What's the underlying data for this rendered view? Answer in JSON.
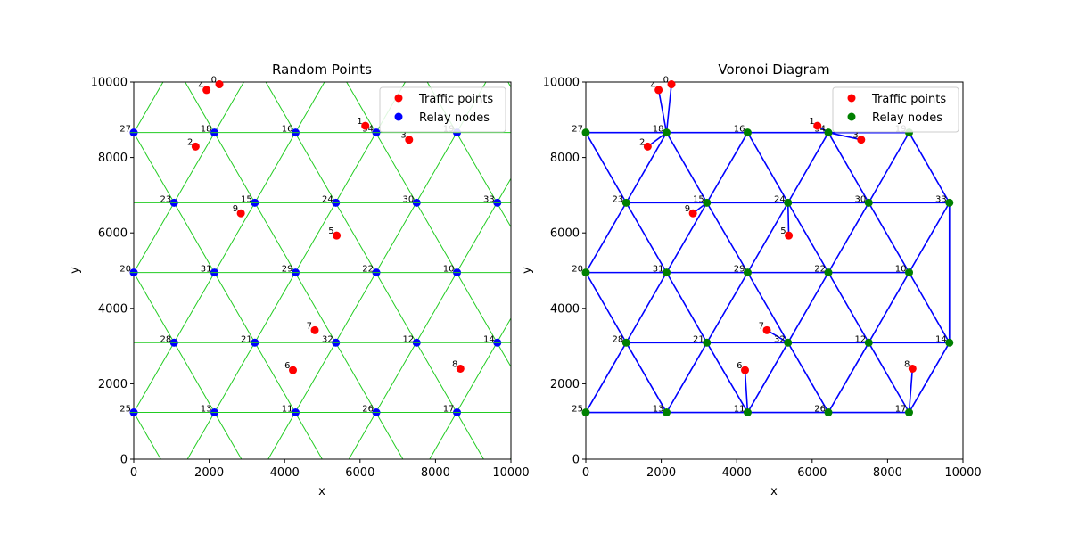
{
  "chart_data": [
    {
      "type": "scatter",
      "title": "Random Points",
      "xlabel": "x",
      "ylabel": "y",
      "xlim": [
        0,
        10000
      ],
      "ylim": [
        0,
        10000
      ],
      "xticks": [
        0,
        2000,
        4000,
        6000,
        8000,
        10000
      ],
      "yticks": [
        0,
        2000,
        4000,
        6000,
        8000,
        10000
      ],
      "legend_position": "upper-right",
      "series": [
        {
          "name": "Traffic points",
          "color": "#ff0000",
          "ref": "traffic_points"
        },
        {
          "name": "Relay nodes",
          "color": "#0000ff",
          "ref": "relay_nodes"
        }
      ],
      "background_grid": "green triangular lattice",
      "grid_color": "#22cc22"
    },
    {
      "type": "scatter",
      "title": "Voronoi Diagram",
      "xlabel": "x",
      "ylabel": "y",
      "xlim": [
        0,
        10000
      ],
      "ylim": [
        0,
        10000
      ],
      "xticks": [
        0,
        2000,
        4000,
        6000,
        8000,
        10000
      ],
      "yticks": [
        0,
        2000,
        4000,
        6000,
        8000,
        10000
      ],
      "legend_position": "upper-right",
      "series": [
        {
          "name": "Traffic points",
          "color": "#ff0000",
          "ref": "traffic_points"
        },
        {
          "name": "Relay nodes",
          "color": "#008000",
          "ref": "relay_nodes"
        }
      ],
      "edge_color": "#0000ff",
      "edges_ref": "edges",
      "assignments_ref": "assignments"
    }
  ],
  "traffic_points": [
    {
      "id": "0",
      "x": 2270,
      "y": 9940
    },
    {
      "id": "1",
      "x": 6140,
      "y": 8840
    },
    {
      "id": "2",
      "x": 1640,
      "y": 8290
    },
    {
      "id": "3",
      "x": 7300,
      "y": 8470
    },
    {
      "id": "4",
      "x": 1930,
      "y": 9790
    },
    {
      "id": "5",
      "x": 5380,
      "y": 5930
    },
    {
      "id": "6",
      "x": 4220,
      "y": 2360
    },
    {
      "id": "7",
      "x": 4800,
      "y": 3420
    },
    {
      "id": "8",
      "x": 8660,
      "y": 2400
    },
    {
      "id": "9",
      "x": 2840,
      "y": 6520
    }
  ],
  "relay_nodes": [
    {
      "id": "10",
      "x": 8570,
      "y": 4950
    },
    {
      "id": "11",
      "x": 4290,
      "y": 1240
    },
    {
      "id": "12",
      "x": 7500,
      "y": 3090
    },
    {
      "id": "13",
      "x": 2140,
      "y": 1240
    },
    {
      "id": "14",
      "x": 9640,
      "y": 3090
    },
    {
      "id": "16",
      "x": 4290,
      "y": 8660
    },
    {
      "id": "17",
      "x": 8570,
      "y": 1240
    },
    {
      "id": "18",
      "x": 2140,
      "y": 8660
    },
    {
      "id": "19",
      "x": 8570,
      "y": 8660
    },
    {
      "id": "20",
      "x": 0,
      "y": 4950
    },
    {
      "id": "21",
      "x": 3210,
      "y": 3090
    },
    {
      "id": "22",
      "x": 6430,
      "y": 4950
    },
    {
      "id": "23",
      "x": 1070,
      "y": 6800
    },
    {
      "id": "24",
      "x": 5360,
      "y": 6800
    },
    {
      "id": "25",
      "x": 0,
      "y": 1240
    },
    {
      "id": "26",
      "x": 6430,
      "y": 1240
    },
    {
      "id": "27",
      "x": 0,
      "y": 8660
    },
    {
      "id": "28",
      "x": 1070,
      "y": 3090
    },
    {
      "id": "29",
      "x": 4290,
      "y": 4950
    },
    {
      "id": "30",
      "x": 7500,
      "y": 6800
    },
    {
      "id": "31",
      "x": 2140,
      "y": 4950
    },
    {
      "id": "32",
      "x": 5360,
      "y": 3090
    },
    {
      "id": "33",
      "x": 9640,
      "y": 6800
    },
    {
      "id": "34",
      "x": 6430,
      "y": 8660
    },
    {
      "id": "15",
      "x": 3210,
      "y": 6800
    }
  ],
  "edges": [
    [
      "27",
      "18"
    ],
    [
      "18",
      "16"
    ],
    [
      "16",
      "34"
    ],
    [
      "34",
      "19"
    ],
    [
      "23",
      "15"
    ],
    [
      "15",
      "24"
    ],
    [
      "24",
      "30"
    ],
    [
      "30",
      "33"
    ],
    [
      "20",
      "31"
    ],
    [
      "31",
      "29"
    ],
    [
      "29",
      "22"
    ],
    [
      "22",
      "10"
    ],
    [
      "28",
      "21"
    ],
    [
      "21",
      "32"
    ],
    [
      "32",
      "12"
    ],
    [
      "12",
      "14"
    ],
    [
      "25",
      "13"
    ],
    [
      "13",
      "11"
    ],
    [
      "11",
      "26"
    ],
    [
      "26",
      "17"
    ],
    [
      "27",
      "23"
    ],
    [
      "18",
      "23"
    ],
    [
      "18",
      "15"
    ],
    [
      "16",
      "15"
    ],
    [
      "16",
      "24"
    ],
    [
      "34",
      "24"
    ],
    [
      "34",
      "30"
    ],
    [
      "19",
      "30"
    ],
    [
      "19",
      "33"
    ],
    [
      "23",
      "20"
    ],
    [
      "23",
      "31"
    ],
    [
      "15",
      "31"
    ],
    [
      "15",
      "29"
    ],
    [
      "24",
      "29"
    ],
    [
      "24",
      "22"
    ],
    [
      "30",
      "22"
    ],
    [
      "30",
      "10"
    ],
    [
      "33",
      "10"
    ],
    [
      "33",
      "14"
    ],
    [
      "20",
      "28"
    ],
    [
      "31",
      "28"
    ],
    [
      "31",
      "21"
    ],
    [
      "29",
      "21"
    ],
    [
      "29",
      "32"
    ],
    [
      "22",
      "32"
    ],
    [
      "22",
      "12"
    ],
    [
      "10",
      "12"
    ],
    [
      "10",
      "14"
    ],
    [
      "28",
      "25"
    ],
    [
      "28",
      "13"
    ],
    [
      "21",
      "13"
    ],
    [
      "21",
      "11"
    ],
    [
      "32",
      "11"
    ],
    [
      "32",
      "26"
    ],
    [
      "12",
      "26"
    ],
    [
      "12",
      "17"
    ],
    [
      "14",
      "17"
    ]
  ],
  "assignments": [
    [
      "0",
      "18"
    ],
    [
      "4",
      "18"
    ],
    [
      "2",
      "18"
    ],
    [
      "1",
      "34"
    ],
    [
      "3",
      "34"
    ],
    [
      "9",
      "15"
    ],
    [
      "5",
      "24"
    ],
    [
      "7",
      "32"
    ],
    [
      "6",
      "11"
    ],
    [
      "8",
      "17"
    ]
  ]
}
